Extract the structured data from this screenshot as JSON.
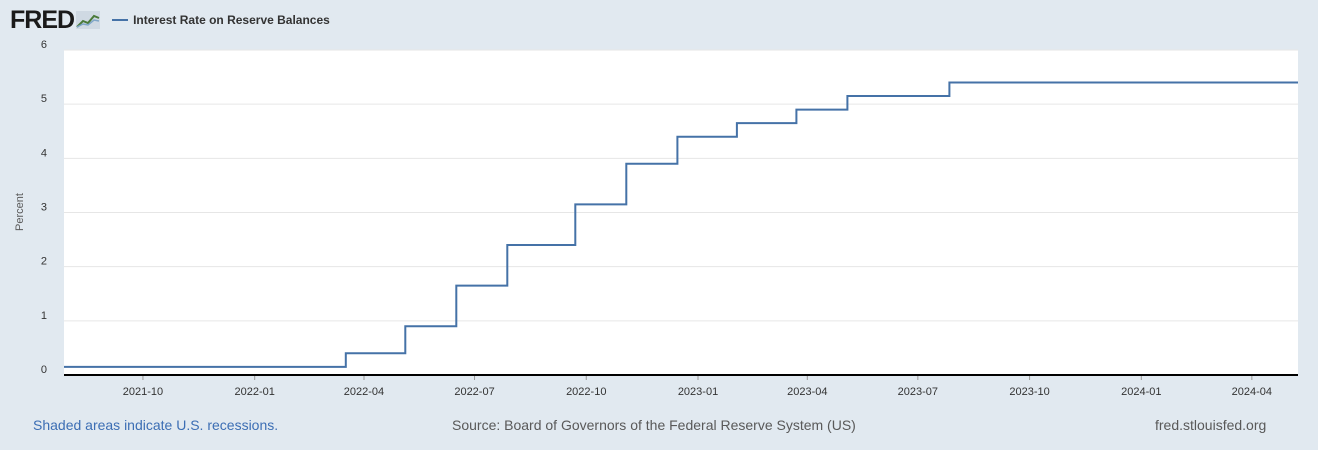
{
  "header": {
    "logo_text": "FRED",
    "legend_label": "Interest Rate on Reserve Balances"
  },
  "footer": {
    "recession_note": "Shaded areas indicate U.S. recessions.",
    "source": "Source: Board of Governors of the Federal Reserve System (US)",
    "site": "fred.stlouisfed.org"
  },
  "colors": {
    "background": "#e1e9f0",
    "plot_background": "#ffffff",
    "series": "#4572a7",
    "grid": "#e6e6e6"
  },
  "chart_data": {
    "type": "line",
    "title": "",
    "xlabel": "",
    "ylabel": "Percent",
    "ylim": [
      0,
      6
    ],
    "xlim": [
      "2021-07-28",
      "2024-05-09"
    ],
    "grid": true,
    "legend_position": "top-left",
    "y_ticks": [
      "0",
      "1",
      "2",
      "3",
      "4",
      "5",
      "6"
    ],
    "x_ticks": [
      {
        "date": "2021-10-01",
        "label": "2021-10"
      },
      {
        "date": "2022-01-01",
        "label": "2022-01"
      },
      {
        "date": "2022-04-01",
        "label": "2022-04"
      },
      {
        "date": "2022-07-01",
        "label": "2022-07"
      },
      {
        "date": "2022-10-01",
        "label": "2022-10"
      },
      {
        "date": "2023-01-01",
        "label": "2023-01"
      },
      {
        "date": "2023-04-01",
        "label": "2023-04"
      },
      {
        "date": "2023-07-01",
        "label": "2023-07"
      },
      {
        "date": "2023-10-01",
        "label": "2023-10"
      },
      {
        "date": "2024-01-01",
        "label": "2024-01"
      },
      {
        "date": "2024-04-01",
        "label": "2024-04"
      }
    ],
    "series": [
      {
        "name": "Interest Rate on Reserve Balances",
        "color": "#4572a7",
        "step": true,
        "points": [
          {
            "x": "2021-07-28",
            "y": 0.15
          },
          {
            "x": "2022-03-17",
            "y": 0.4
          },
          {
            "x": "2022-05-05",
            "y": 0.9
          },
          {
            "x": "2022-06-16",
            "y": 1.65
          },
          {
            "x": "2022-07-28",
            "y": 2.4
          },
          {
            "x": "2022-09-22",
            "y": 3.15
          },
          {
            "x": "2022-11-03",
            "y": 3.9
          },
          {
            "x": "2022-12-15",
            "y": 4.4
          },
          {
            "x": "2023-02-02",
            "y": 4.65
          },
          {
            "x": "2023-03-23",
            "y": 4.9
          },
          {
            "x": "2023-05-04",
            "y": 5.15
          },
          {
            "x": "2023-07-27",
            "y": 5.4
          },
          {
            "x": "2024-05-09",
            "y": 5.4
          }
        ]
      }
    ]
  }
}
